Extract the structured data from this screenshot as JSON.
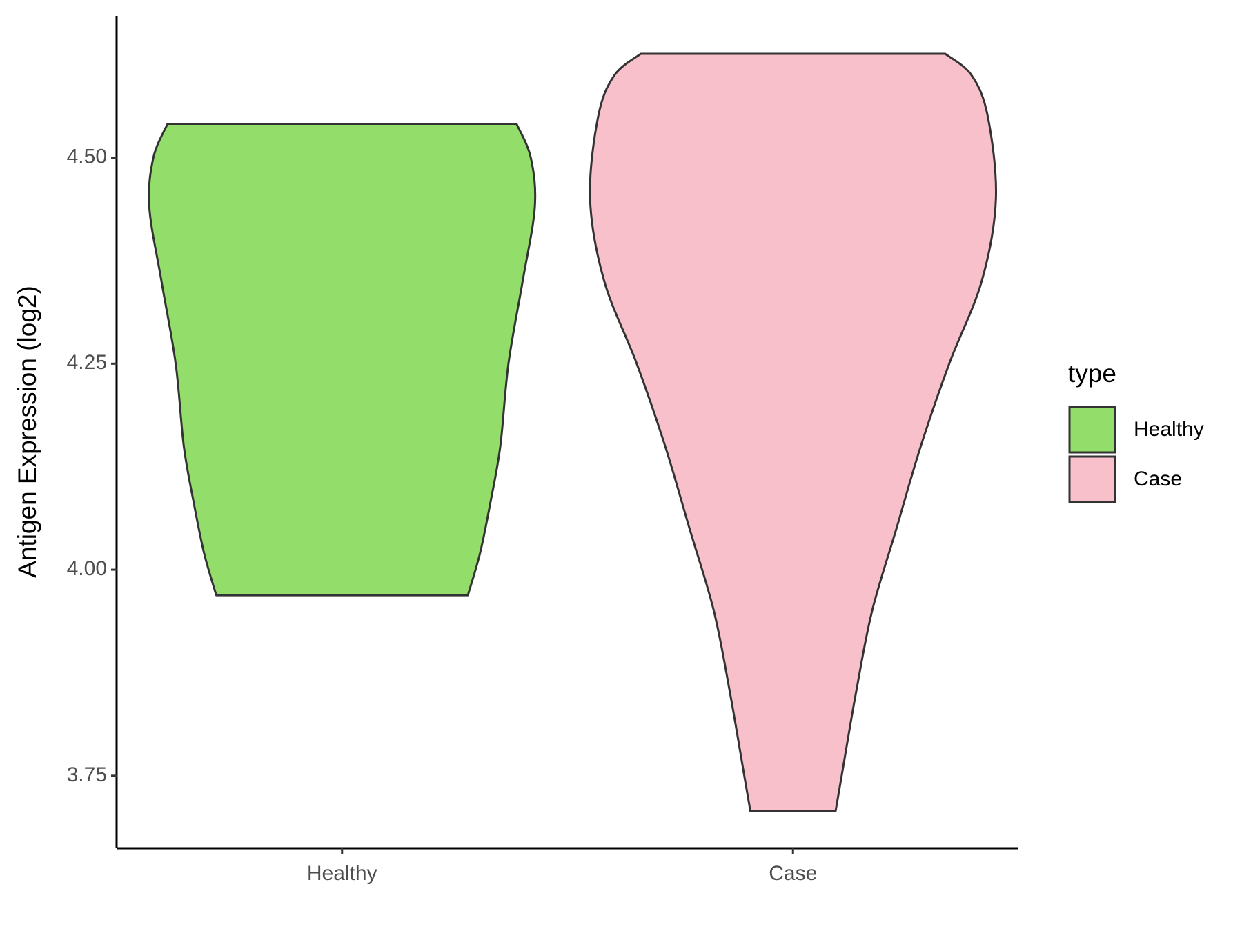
{
  "chart_data": {
    "type": "violin",
    "y_label": "Antigen Expression (log2)",
    "legend_title": "type",
    "categories": [
      "Healthy",
      "Case"
    ],
    "ylim": [
      3.662,
      4.672
    ],
    "yticks": [
      {
        "value": 3.75,
        "label": "3.75"
      },
      {
        "value": 4.0,
        "label": "4.00"
      },
      {
        "value": 4.25,
        "label": "4.25"
      },
      {
        "value": 4.5,
        "label": "4.50"
      }
    ],
    "series": [
      {
        "name": "Healthy",
        "color": "#93dd6a",
        "density": {
          "y": [
            4.541,
            4.5,
            4.44,
            4.35,
            4.25,
            4.15,
            4.08,
            4.02,
            3.969
          ],
          "width": [
            0.86,
            0.93,
            0.95,
            0.89,
            0.82,
            0.78,
            0.73,
            0.68,
            0.62
          ]
        }
      },
      {
        "name": "Case",
        "color": "#f7c0cb",
        "density": {
          "y": [
            4.626,
            4.6,
            4.55,
            4.45,
            4.35,
            4.25,
            4.15,
            4.05,
            3.95,
            3.85,
            3.75,
            3.707
          ],
          "width": [
            0.75,
            0.88,
            0.96,
            1.0,
            0.93,
            0.77,
            0.63,
            0.51,
            0.39,
            0.31,
            0.24,
            0.21
          ]
        }
      }
    ]
  }
}
